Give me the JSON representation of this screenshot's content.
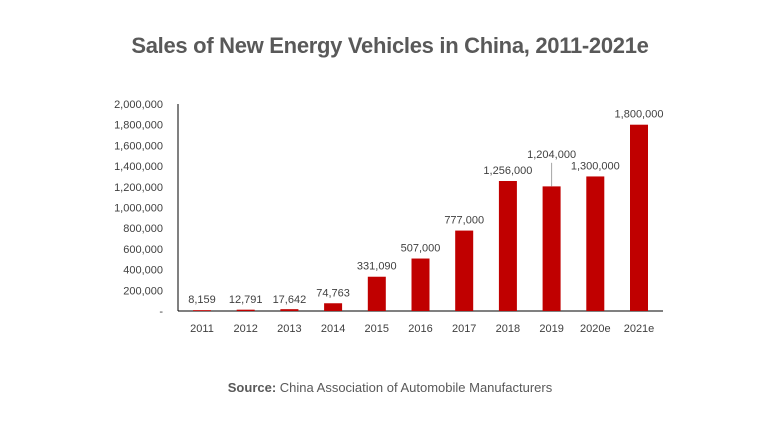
{
  "chart_data": {
    "type": "bar",
    "title": "Sales of New Energy Vehicles in China, 2011-2021e",
    "categories": [
      "2011",
      "2012",
      "2013",
      "2014",
      "2015",
      "2016",
      "2017",
      "2018",
      "2019",
      "2020e",
      "2021e"
    ],
    "values": [
      8159,
      12791,
      17642,
      74763,
      331090,
      507000,
      777000,
      1256000,
      1204000,
      1300000,
      1800000
    ],
    "data_labels": [
      "8,159",
      "12,791",
      "17,642",
      "74,763",
      "331,090",
      "507,000",
      "777,000",
      "1,256,000",
      "1,204,000",
      "1,300,000",
      "1,800,000"
    ],
    "ylim": [
      0,
      2000000
    ],
    "y_ticks": [
      0,
      200000,
      400000,
      600000,
      800000,
      1000000,
      1200000,
      1400000,
      1600000,
      1800000,
      2000000
    ],
    "y_tick_labels": [
      "-",
      "200,000",
      "400,000",
      "600,000",
      "800,000",
      "1,000,000",
      "1,200,000",
      "1,400,000",
      "1,600,000",
      "1,800,000",
      "2,000,000"
    ],
    "xlabel": "",
    "ylabel": "",
    "grid": false,
    "legend": "none",
    "bar_color": "#C00000"
  },
  "source": {
    "label": "Source:",
    "text": " China Association of Automobile Manufacturers"
  }
}
